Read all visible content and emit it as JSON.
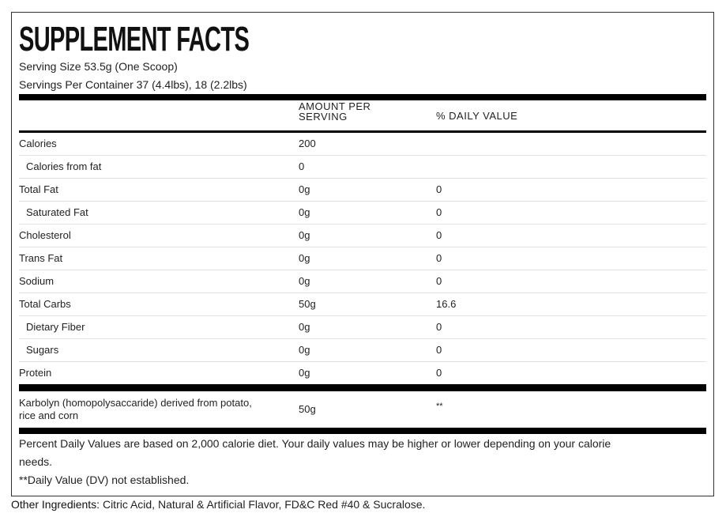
{
  "title": "SUPPLEMENT FACTS",
  "serving_size": "Serving Size 53.5g (One Scoop)",
  "servings_per_container": "Servings Per Container 37 (4.4lbs), 18 (2.2lbs)",
  "headers": {
    "amount_line1": "AMOUNT PER",
    "amount_line2": "SERVING",
    "daily_value": "% DAILY VALUE"
  },
  "rows": [
    {
      "name": "Calories",
      "amount": "200",
      "dv": "",
      "indent": false
    },
    {
      "name": "Calories from fat",
      "amount": "0",
      "dv": "",
      "indent": true
    },
    {
      "name": "Total Fat",
      "amount": "0g",
      "dv": "0",
      "indent": false
    },
    {
      "name": "Saturated Fat",
      "amount": "0g",
      "dv": "0",
      "indent": true
    },
    {
      "name": "Cholesterol",
      "amount": "0g",
      "dv": "0",
      "indent": false
    },
    {
      "name": "Trans Fat",
      "amount": "0g",
      "dv": "0",
      "indent": false
    },
    {
      "name": "Sodium",
      "amount": "0g",
      "dv": "0",
      "indent": false
    },
    {
      "name": "Total Carbs",
      "amount": "50g",
      "dv": "16.6",
      "indent": false
    },
    {
      "name": "Dietary Fiber",
      "amount": "0g",
      "dv": "0",
      "indent": true
    },
    {
      "name": "Sugars",
      "amount": "0g",
      "dv": "0",
      "indent": true
    },
    {
      "name": "Protein",
      "amount": "0g",
      "dv": "0",
      "indent": false
    }
  ],
  "karbolyn": {
    "name_line1": "Karbolyn (homopolysaccaride) derived from potato,",
    "name_line2": "rice and corn",
    "amount": "50g",
    "dv": "**"
  },
  "footnotes": {
    "line1": "Percent Daily Values are based on 2,000 calorie diet. Your daily values may be higher or lower depending on your calorie",
    "line2": "needs.",
    "line3": "**Daily Value (DV) not established."
  },
  "other_ingredients": {
    "label": "Other Ingredients:",
    "text": " Citric Acid, Natural & Artificial Flavor, FD&C Red #40 & Sucralose."
  }
}
